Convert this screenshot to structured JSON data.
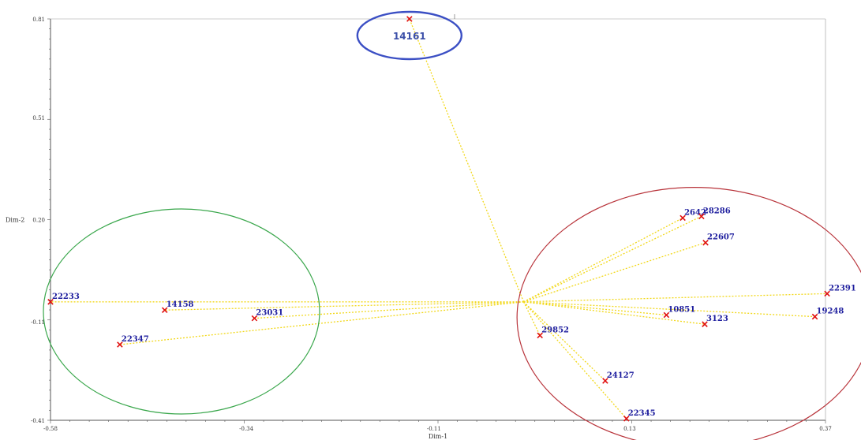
{
  "chart_data": {
    "type": "scatter",
    "xlabel": "Dim-1",
    "ylabel": "Dim-2",
    "x_ticks": [
      "-0.58",
      "-0.34",
      "-0.11",
      "0.13",
      "0.37"
    ],
    "y_ticks": [
      "0.81",
      "0.51",
      "0.20",
      "-0.11",
      "-0.41"
    ],
    "xlim": [
      -0.58,
      0.37
    ],
    "ylim": [
      -0.41,
      0.81
    ],
    "grid": false,
    "center": {
      "x": 0.0,
      "y": -0.05
    },
    "points": [
      {
        "label": "14161",
        "x": -0.14,
        "y": 0.81,
        "group": "blue"
      },
      {
        "label": "22233",
        "x": -0.58,
        "y": -0.05,
        "group": "green"
      },
      {
        "label": "14158",
        "x": -0.44,
        "y": -0.075,
        "group": "green"
      },
      {
        "label": "23031",
        "x": -0.33,
        "y": -0.1,
        "group": "green"
      },
      {
        "label": "22347",
        "x": -0.495,
        "y": -0.18,
        "group": "green"
      },
      {
        "label": "2642",
        "x": 0.195,
        "y": 0.205,
        "group": "red"
      },
      {
        "label": "28286",
        "x": 0.218,
        "y": 0.21,
        "group": "red"
      },
      {
        "label": "22607",
        "x": 0.223,
        "y": 0.13,
        "group": "red"
      },
      {
        "label": "22391",
        "x": 0.372,
        "y": -0.025,
        "group": "red"
      },
      {
        "label": "19248",
        "x": 0.357,
        "y": -0.095,
        "group": "red"
      },
      {
        "label": "10851",
        "x": 0.175,
        "y": -0.09,
        "group": "red"
      },
      {
        "label": "3123",
        "x": 0.222,
        "y": -0.118,
        "group": "red"
      },
      {
        "label": "29852",
        "x": 0.02,
        "y": -0.152,
        "group": "red"
      },
      {
        "label": "24127",
        "x": 0.1,
        "y": -0.29,
        "group": "red"
      },
      {
        "label": "22345",
        "x": 0.126,
        "y": -0.405,
        "group": "red"
      }
    ],
    "clusters": [
      {
        "name": "blue",
        "color": "#3b4fc4"
      },
      {
        "name": "green",
        "color": "#3aa74c"
      },
      {
        "name": "red",
        "color": "#b8333a"
      }
    ]
  }
}
